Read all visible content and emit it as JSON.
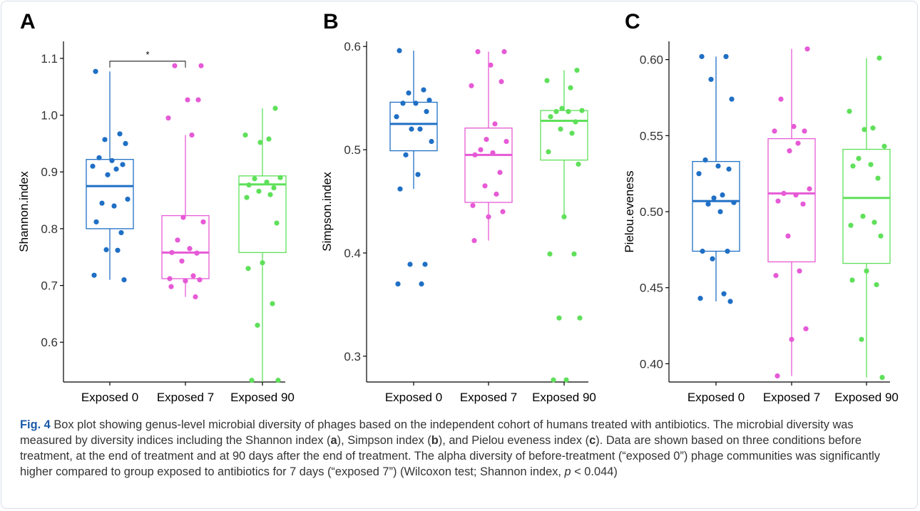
{
  "figure": {
    "caption_label": "Fig. 4",
    "caption_text_1": " Box plot showing genus-level microbial diversity of phages based on the independent cohort of humans treated with antibiotics. The microbial diversity was measured by diversity indices including the Shannon index (",
    "caption_a": "a",
    "caption_text_2": "), Simpson index (",
    "caption_b": "b",
    "caption_text_3": "), and Pielou eveness index (",
    "caption_c": "c",
    "caption_text_4": "). Data are shown based on three conditions before treatment, at the end of treatment and at 90 days after the end of treatment. The alpha diversity of before-treatment (“exposed 0”) phage communities was significantly higher compared to group exposed to antibiotics for 7 days (“exposed 7”) (Wilcoxon test; Shannon index, ",
    "caption_p": "p",
    "caption_text_5": " < 0.044)"
  },
  "colors": {
    "exposed0": "#1f6fc5",
    "exposed7": "#e65ad6",
    "exposed90": "#5fe05a"
  },
  "chart_data": [
    {
      "type": "box",
      "panel_letter": "A",
      "ylabel": "Shannon.index",
      "ylim": [
        0.53,
        1.13
      ],
      "yticks": [
        0.6,
        0.7,
        0.8,
        0.9,
        1.0,
        1.1
      ],
      "ytick_labels": [
        "0.6",
        "0.7",
        "0.8",
        "0.9",
        "1.0",
        "1.1"
      ],
      "categories": [
        "Exposed 0",
        "Exposed 7",
        "Exposed 90"
      ],
      "boxes": [
        {
          "whisker_low": 0.71,
          "q1": 0.8,
          "median": 0.875,
          "q3": 0.922,
          "whisker_high": 1.077
        },
        {
          "whisker_low": 0.68,
          "q1": 0.712,
          "median": 0.758,
          "q3": 0.823,
          "whisker_high": 0.965
        },
        {
          "whisker_low": 0.53,
          "q1": 0.758,
          "median": 0.878,
          "q3": 0.893,
          "whisker_high": 1.012
        }
      ],
      "points": [
        [
          1.077,
          0.967,
          0.957,
          0.95,
          0.925,
          0.92,
          0.913,
          0.91,
          0.905,
          0.895,
          0.852,
          0.845,
          0.84,
          0.812,
          0.793,
          0.763,
          0.762,
          0.718,
          0.71
        ],
        [
          1.087,
          1.087,
          1.027,
          1.027,
          0.995,
          0.965,
          0.82,
          0.812,
          0.78,
          0.765,
          0.758,
          0.757,
          0.743,
          0.717,
          0.712,
          0.71,
          0.708,
          0.698,
          0.68
        ],
        [
          1.012,
          0.965,
          0.958,
          0.952,
          0.89,
          0.888,
          0.882,
          0.877,
          0.872,
          0.866,
          0.86,
          0.855,
          0.81,
          0.74,
          0.73,
          0.668,
          0.63,
          0.533,
          0.533
        ]
      ],
      "significance": {
        "label": "*",
        "between": [
          0,
          1
        ],
        "y": 1.095
      }
    },
    {
      "type": "box",
      "panel_letter": "B",
      "ylabel": "Simpson.index",
      "ylim": [
        0.275,
        0.605
      ],
      "yticks": [
        0.3,
        0.4,
        0.5,
        0.6
      ],
      "ytick_labels": [
        "0.3",
        "0.4",
        "0.5",
        "0.6"
      ],
      "categories": [
        "Exposed 0",
        "Exposed 7",
        "Exposed 90"
      ],
      "boxes": [
        {
          "whisker_low": 0.462,
          "q1": 0.499,
          "median": 0.525,
          "q3": 0.546,
          "whisker_high": 0.596
        },
        {
          "whisker_low": 0.412,
          "q1": 0.449,
          "median": 0.495,
          "q3": 0.521,
          "whisker_high": 0.595
        },
        {
          "whisker_low": 0.435,
          "q1": 0.49,
          "median": 0.528,
          "q3": 0.538,
          "whisker_high": 0.577
        }
      ],
      "points": [
        [
          0.596,
          0.558,
          0.555,
          0.548,
          0.545,
          0.545,
          0.537,
          0.532,
          0.52,
          0.52,
          0.508,
          0.495,
          0.476,
          0.462,
          0.389,
          0.389,
          0.37,
          0.37
        ],
        [
          0.595,
          0.595,
          0.582,
          0.566,
          0.562,
          0.525,
          0.51,
          0.508,
          0.5,
          0.497,
          0.495,
          0.478,
          0.465,
          0.457,
          0.446,
          0.44,
          0.435,
          0.412
        ],
        [
          0.577,
          0.567,
          0.56,
          0.54,
          0.538,
          0.537,
          0.537,
          0.532,
          0.527,
          0.52,
          0.516,
          0.498,
          0.486,
          0.435,
          0.399,
          0.399,
          0.337,
          0.337,
          0.277,
          0.277
        ]
      ]
    },
    {
      "type": "box",
      "panel_letter": "C",
      "ylabel": "Pielou.eveness",
      "ylim": [
        0.388,
        0.612
      ],
      "yticks": [
        0.4,
        0.45,
        0.5,
        0.55,
        0.6
      ],
      "ytick_labels": [
        "0.40",
        "0.45",
        "0.50",
        "0.55",
        "0.60"
      ],
      "categories": [
        "Exposed 0",
        "Exposed 7",
        "Exposed 90"
      ],
      "boxes": [
        {
          "whisker_low": 0.441,
          "q1": 0.474,
          "median": 0.507,
          "q3": 0.533,
          "whisker_high": 0.602
        },
        {
          "whisker_low": 0.392,
          "q1": 0.467,
          "median": 0.512,
          "q3": 0.548,
          "whisker_high": 0.607
        },
        {
          "whisker_low": 0.391,
          "q1": 0.466,
          "median": 0.509,
          "q3": 0.541,
          "whisker_high": 0.601
        }
      ],
      "points": [
        [
          0.602,
          0.602,
          0.587,
          0.574,
          0.534,
          0.53,
          0.528,
          0.525,
          0.511,
          0.509,
          0.506,
          0.505,
          0.5,
          0.474,
          0.474,
          0.469,
          0.446,
          0.443,
          0.441
        ],
        [
          0.607,
          0.574,
          0.556,
          0.553,
          0.553,
          0.545,
          0.54,
          0.515,
          0.512,
          0.511,
          0.507,
          0.505,
          0.484,
          0.461,
          0.458,
          0.423,
          0.416,
          0.392
        ],
        [
          0.601,
          0.566,
          0.555,
          0.554,
          0.543,
          0.535,
          0.531,
          0.53,
          0.522,
          0.497,
          0.493,
          0.491,
          0.484,
          0.461,
          0.455,
          0.452,
          0.416,
          0.391
        ]
      ]
    }
  ]
}
